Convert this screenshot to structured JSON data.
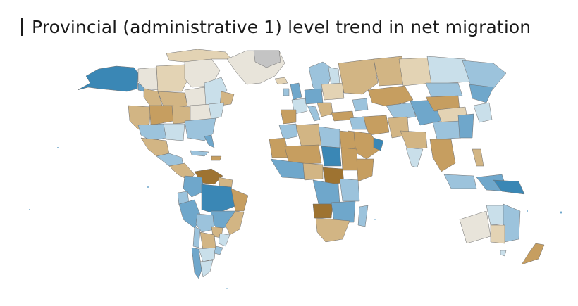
{
  "title": "Provincial (administrative 1) level trend in net migration",
  "palette": {
    "gain_strong": "#3a87b5",
    "gain_mid": "#6fa7cb",
    "gain_light": "#9cc3dc",
    "gain_faint": "#c9dfea",
    "neutral": "#e8e4da",
    "loss_faint": "#e3d3b4",
    "loss_light": "#d2b584",
    "loss_mid": "#c69e60",
    "loss_strong": "#9e7331",
    "no_data": "#c4c4c4"
  }
}
